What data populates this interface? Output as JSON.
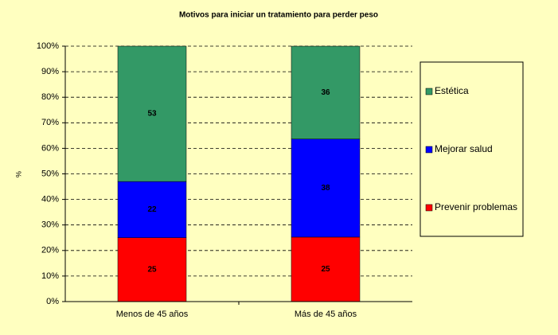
{
  "chart_data": {
    "type": "stacked-bar-100",
    "title": "Motivos para iniciar un tratamiento para perder peso",
    "ylabel": "%",
    "categories": [
      "Menos de 45 años",
      "Más de 45 años"
    ],
    "series": [
      {
        "name": "Prevenir problemas",
        "color": "#ff0000",
        "values": [
          25,
          25.25
        ],
        "value_labels": [
          "25",
          "25"
        ]
      },
      {
        "name": "Mejorar salud",
        "color": "#0000ff",
        "values": [
          22,
          38.38
        ],
        "value_labels": [
          "22",
          "38"
        ]
      },
      {
        "name": "Estética",
        "color": "#339966",
        "values": [
          53,
          36.36
        ],
        "value_labels": [
          "53",
          "36"
        ]
      }
    ],
    "ylim": [
      0,
      100
    ],
    "yticks": [
      {
        "value": 0,
        "label": "0%"
      },
      {
        "value": 10,
        "label": "10%"
      },
      {
        "value": 20,
        "label": "20%"
      },
      {
        "value": 30,
        "label": "30%"
      },
      {
        "value": 40,
        "label": "40%"
      },
      {
        "value": 50,
        "label": "50%"
      },
      {
        "value": 60,
        "label": "60%"
      },
      {
        "value": 70,
        "label": "70%"
      },
      {
        "value": 80,
        "label": "80%"
      },
      {
        "value": 90,
        "label": "90%"
      },
      {
        "value": 100,
        "label": "100%"
      }
    ],
    "grid": true,
    "legend": "right"
  }
}
